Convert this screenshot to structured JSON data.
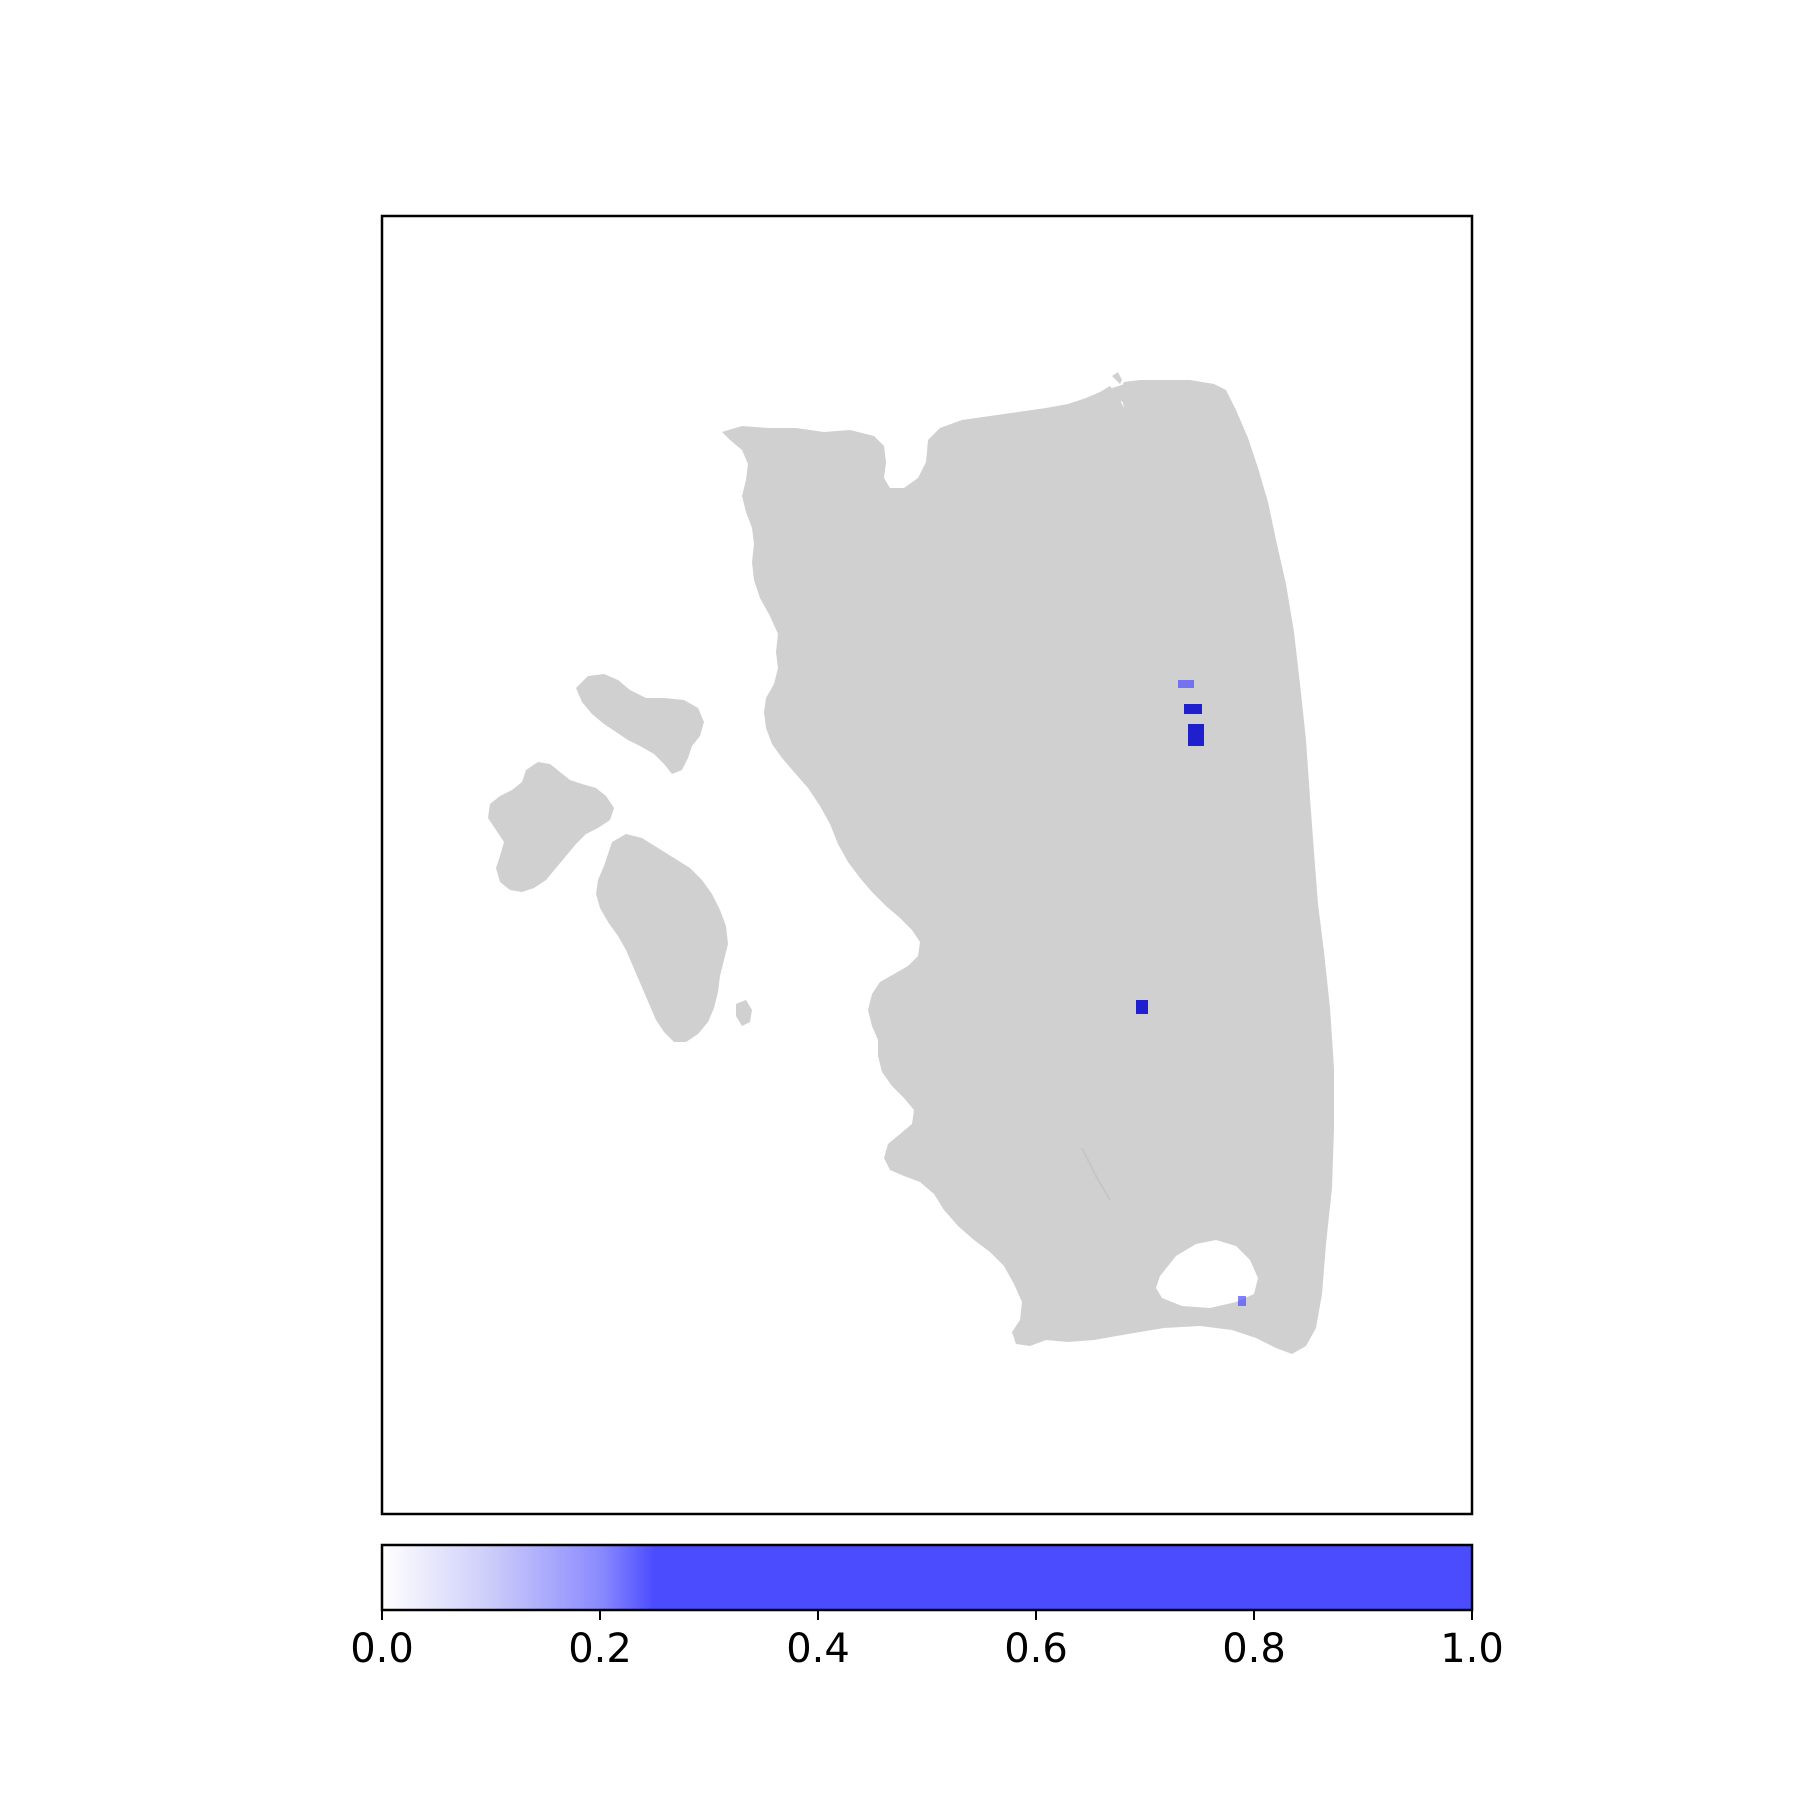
{
  "chart_data": {
    "type": "heatmap",
    "title": "",
    "xlabel": "",
    "ylabel": "",
    "axes_ticks_visible": false,
    "grid": false,
    "background_mask_color": "#d0d0d0",
    "highlight_color": "#0000cc",
    "highlights": [
      {
        "region": "upper-right cluster",
        "value": 0.9
      },
      {
        "region": "upper-right small patch",
        "value": 0.5
      },
      {
        "region": "center-right patch",
        "value": 0.8
      },
      {
        "region": "lower-right near hole",
        "value": 0.6
      }
    ],
    "colorbar": {
      "orientation": "horizontal",
      "placement": "bottom",
      "range": [
        0.0,
        1.0
      ],
      "ticks": [
        0.0,
        0.2,
        0.4,
        0.6,
        0.8,
        1.0
      ],
      "tick_labels": [
        "0.0",
        "0.2",
        "0.4",
        "0.6",
        "0.8",
        "1.0"
      ],
      "color_stops": [
        {
          "value": 0.0,
          "color": "#ffffff"
        },
        {
          "value": 0.1,
          "color": "#ccccfa"
        },
        {
          "value": 0.2,
          "color": "#8b8bff"
        },
        {
          "value": 0.25,
          "color": "#4c4cff"
        },
        {
          "value": 1.0,
          "color": "#4c4cff"
        }
      ]
    }
  }
}
